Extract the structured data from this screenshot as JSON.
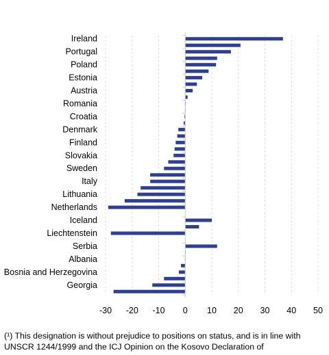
{
  "chart_data": {
    "type": "bar",
    "orientation": "horizontal",
    "color": "#2e3f97",
    "xlim": [
      -30,
      50
    ],
    "xticks": [
      "-30",
      "-20",
      "-10",
      "0",
      "10",
      "20",
      "30",
      "40",
      "50"
    ],
    "grid": true,
    "rows": [
      {
        "label": "Ireland",
        "value": 36.8
      },
      {
        "label": "",
        "value": 20.8
      },
      {
        "label": "Portugal",
        "value": 17.2
      },
      {
        "label": "",
        "value": 12.0
      },
      {
        "label": "Poland",
        "value": 11.6
      },
      {
        "label": "",
        "value": 8.8
      },
      {
        "label": "Estonia",
        "value": 6.4
      },
      {
        "label": "",
        "value": 4.4
      },
      {
        "label": "Austria",
        "value": 2.8
      },
      {
        "label": "",
        "value": 0.9
      },
      {
        "label": "Romania",
        "value": 0.2
      },
      {
        "label": "",
        "value": 0.1
      },
      {
        "label": "Croatia",
        "value": -0.3
      },
      {
        "label": "",
        "value": -0.6
      },
      {
        "label": "Denmark",
        "value": -2.6
      },
      {
        "label": "",
        "value": -3.0
      },
      {
        "label": "Finland",
        "value": -3.6
      },
      {
        "label": "",
        "value": -4.0
      },
      {
        "label": "Slovakia",
        "value": -4.4
      },
      {
        "label": "",
        "value": -6.4
      },
      {
        "label": "Sweden",
        "value": -8.0
      },
      {
        "label": "",
        "value": -13.2
      },
      {
        "label": "Italy",
        "value": -13.2
      },
      {
        "label": "",
        "value": -16.8
      },
      {
        "label": "Lithuania",
        "value": -18.0
      },
      {
        "label": "",
        "value": -22.8
      },
      {
        "label": "Netherlands",
        "value": -29.0
      },
      {
        "label": "",
        "value": null
      },
      {
        "label": "Iceland",
        "value": 10.0
      },
      {
        "label": "",
        "value": 5.2
      },
      {
        "label": "Liechtenstein",
        "value": -28.0
      },
      {
        "label": "",
        "value": null
      },
      {
        "label": "Serbia",
        "value": 12.0
      },
      {
        "label": "",
        "value": 0.1
      },
      {
        "label": "Albania",
        "value": 0.0
      },
      {
        "label": "",
        "value": -1.6
      },
      {
        "label": "Bosnia and Herzegovina",
        "value": -2.4
      },
      {
        "label": "",
        "value": -8.0
      },
      {
        "label": "Georgia",
        "value": -12.4
      },
      {
        "label": "",
        "value": -27.0
      }
    ]
  },
  "footnote": {
    "marker": "(¹)",
    "text": " This designation is without prejudice to positions on status, and is in line with UNSCR 1244/1999 and the ICJ Opinion on the Kosovo Declaration of"
  }
}
